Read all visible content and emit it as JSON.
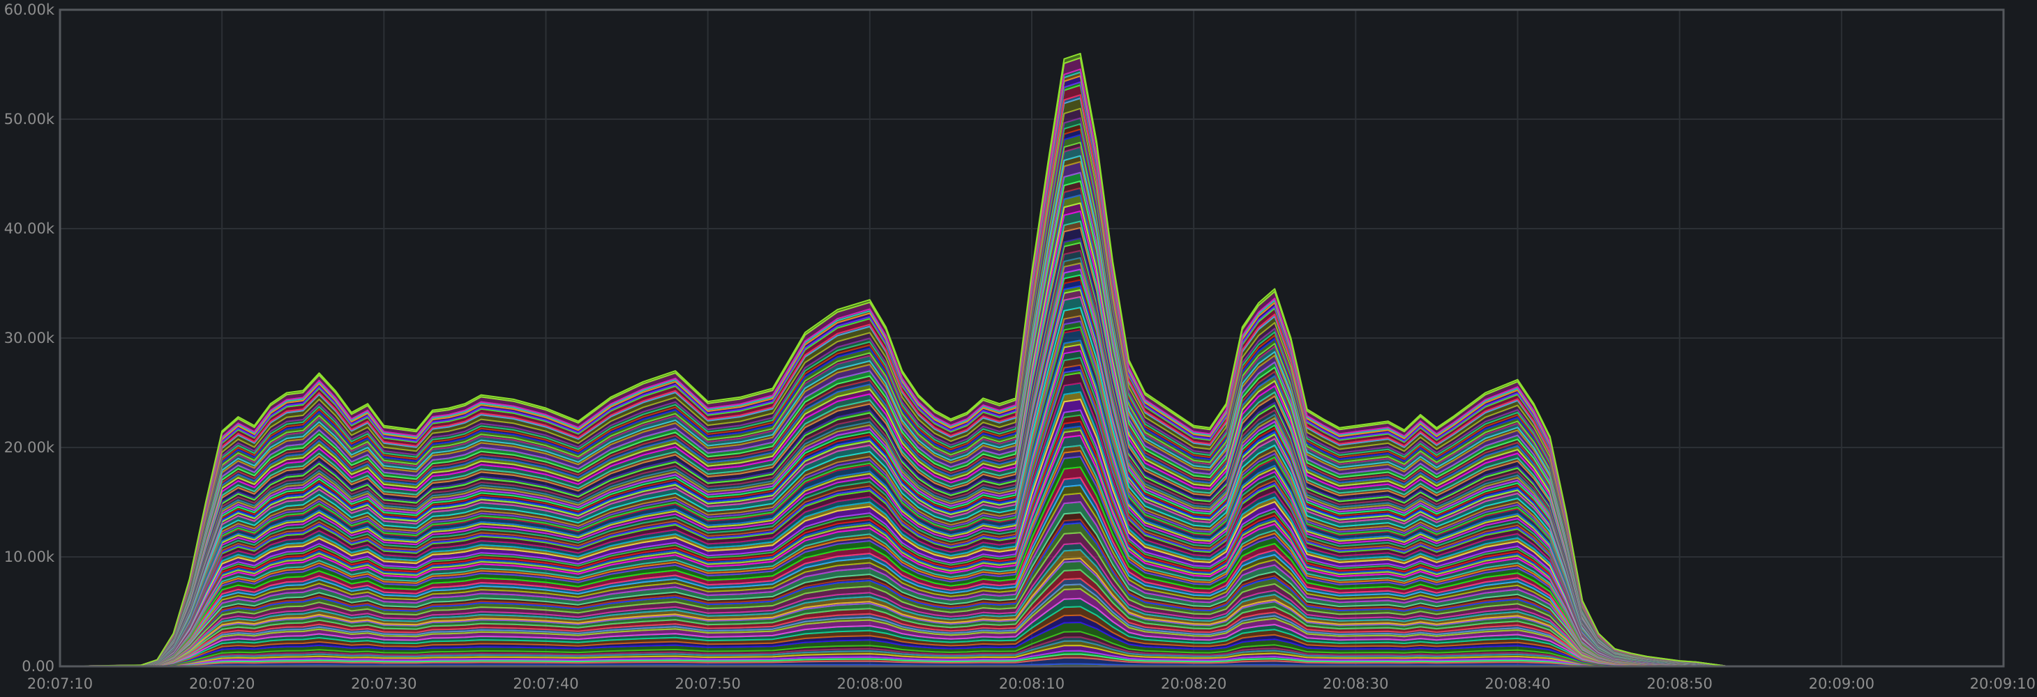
{
  "chart_data": {
    "type": "area",
    "stacked": true,
    "grid": true,
    "legend": "none",
    "title": "",
    "xlabel": "",
    "ylabel": "",
    "ylim": [
      0,
      60000
    ],
    "xlim": [
      "20:07:10",
      "20:09:10"
    ],
    "y_ticks": [
      "0.00",
      "10.00k",
      "20.00k",
      "30.00k",
      "40.00k",
      "50.00k",
      "60.00k"
    ],
    "x_ticks": [
      "20:07:10",
      "20:07:20",
      "20:07:30",
      "20:07:40",
      "20:07:50",
      "20:08:00",
      "20:08:10",
      "20:08:20",
      "20:08:30",
      "20:08:40",
      "20:08:50",
      "20:09:00",
      "20:09:10"
    ],
    "series_count": 90,
    "total_x": [
      "20:07:10",
      "20:07:15",
      "20:07:16",
      "20:07:17",
      "20:07:18",
      "20:07:19",
      "20:07:20",
      "20:07:21",
      "20:07:22",
      "20:07:23",
      "20:07:24",
      "20:07:25",
      "20:07:26",
      "20:07:27",
      "20:07:28",
      "20:07:29",
      "20:07:30",
      "20:07:31",
      "20:07:32",
      "20:07:33",
      "20:07:34",
      "20:07:35",
      "20:07:36",
      "20:07:38",
      "20:07:40",
      "20:07:42",
      "20:07:44",
      "20:07:46",
      "20:07:48",
      "20:07:50",
      "20:07:52",
      "20:07:54",
      "20:07:56",
      "20:07:58",
      "20:08:00",
      "20:08:01",
      "20:08:02",
      "20:08:03",
      "20:08:04",
      "20:08:05",
      "20:08:06",
      "20:08:07",
      "20:08:08",
      "20:08:09",
      "20:08:10",
      "20:08:11",
      "20:08:12",
      "20:08:13",
      "20:08:14",
      "20:08:15",
      "20:08:16",
      "20:08:17",
      "20:08:18",
      "20:08:19",
      "20:08:20",
      "20:08:21",
      "20:08:22",
      "20:08:23",
      "20:08:24",
      "20:08:25",
      "20:08:26",
      "20:08:27",
      "20:08:28",
      "20:08:29",
      "20:08:30",
      "20:08:31",
      "20:08:32",
      "20:08:33",
      "20:08:34",
      "20:08:35",
      "20:08:36",
      "20:08:38",
      "20:08:40",
      "20:08:41",
      "20:08:42",
      "20:08:43",
      "20:08:44",
      "20:08:45",
      "20:08:46",
      "20:08:47",
      "20:08:48",
      "20:08:49",
      "20:08:50",
      "20:08:51",
      "20:08:52",
      "20:08:53",
      "20:08:54",
      "20:08:55",
      "20:08:56",
      "20:08:57",
      "20:08:58",
      "20:08:59",
      "20:09:00",
      "20:09:01",
      "20:09:02",
      "20:09:10"
    ],
    "total_y": [
      0,
      100,
      600,
      3000,
      8000,
      15000,
      21500,
      22800,
      22000,
      24000,
      25000,
      25200,
      26800,
      25200,
      23200,
      24000,
      22000,
      21800,
      21600,
      23400,
      23600,
      24000,
      24800,
      24400,
      23600,
      22400,
      24600,
      26000,
      27000,
      24200,
      24600,
      25400,
      30500,
      32600,
      33500,
      31000,
      27000,
      24800,
      23400,
      22600,
      23200,
      24500,
      24000,
      24500,
      36000,
      46000,
      55500,
      56000,
      48000,
      37000,
      28000,
      25000,
      24000,
      23000,
      22000,
      21800,
      24000,
      31000,
      33200,
      34500,
      30000,
      23500,
      22600,
      21800,
      22000,
      22200,
      22400,
      21600,
      23000,
      21800,
      22800,
      25000,
      26200,
      24000,
      21000,
      14000,
      6000,
      3000,
      1600,
      1200,
      900,
      700,
      500,
      400,
      200,
      0,
      0,
      0,
      0,
      0,
      0,
      0,
      0,
      0,
      0,
      0
    ]
  }
}
